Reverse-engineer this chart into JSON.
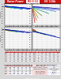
{
  "bg_color": "#d8d8d8",
  "header_color": "#cc2222",
  "white": "#ffffff",
  "light_gray": "#eeeeee",
  "dark_gray": "#555555",
  "grid_col": "#bbbbbb",
  "red": "#cc0000",
  "blue": "#0000cc",
  "curve_colors_cc": [
    "#0000bb",
    "#0044cc",
    "#0088bb",
    "#00aaaa",
    "#338833",
    "#aaaa00",
    "#cc6600",
    "#cc0000"
  ],
  "curve_colors_cp": [
    "#cc0000",
    "#cc4400",
    "#cc8800",
    "#888800",
    "#008800",
    "#0066bb",
    "#0000bb",
    "#000088"
  ],
  "curve_colors_dc": [
    "#cc0000",
    "#cc3300",
    "#aa6600",
    "#446600",
    "#004488",
    "#000066"
  ],
  "curve_colors_cr": [
    "#cc0000",
    "#cc4400",
    "#aa8800",
    "#558800",
    "#008866",
    "#0066cc",
    "#0000cc",
    "#000088"
  ]
}
